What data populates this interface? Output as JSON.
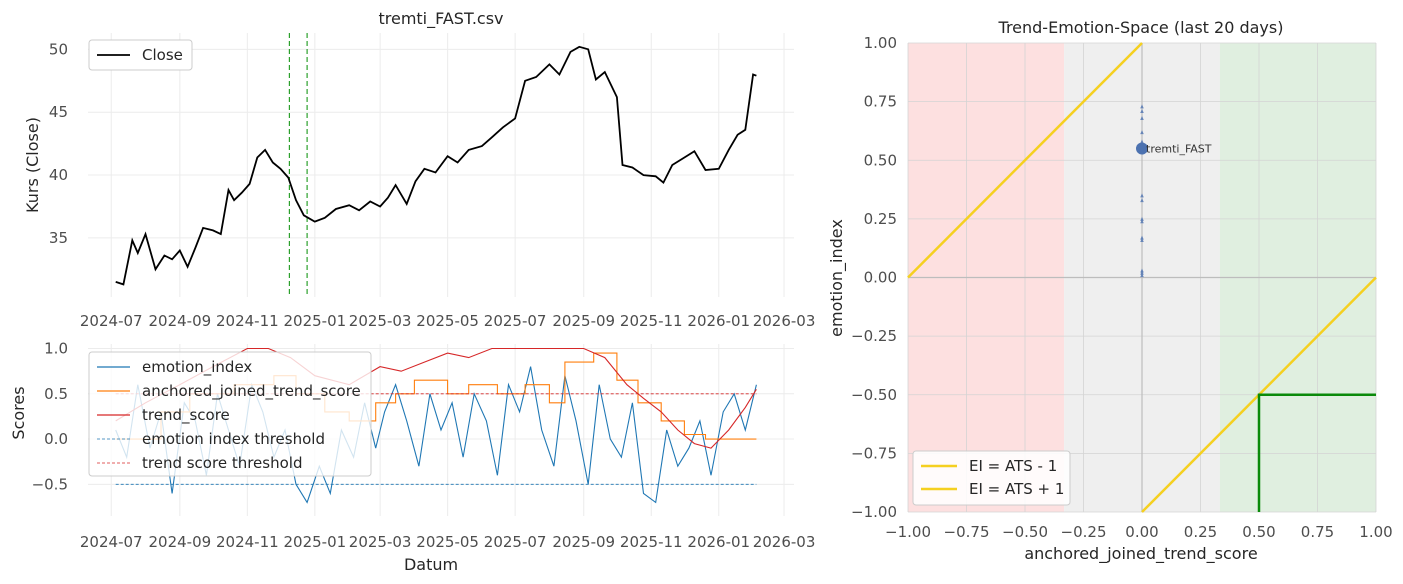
{
  "chart_data": [
    {
      "type": "line",
      "title": "tremti_FAST.csv",
      "xlabel": "",
      "ylabel": "Kurs (Close)",
      "xlim": [
        "2024-06-10",
        "2026-03-10"
      ],
      "ylim": [
        30.3,
        51.3
      ],
      "yticks": [
        35,
        40,
        45,
        50
      ],
      "xticks": [
        "2024-07",
        "2024-09",
        "2024-11",
        "2025-01",
        "2025-03",
        "2025-05",
        "2025-07",
        "2025-09",
        "2025-11",
        "2026-01",
        "2026-03"
      ],
      "grid": true,
      "legend": "top-left",
      "vlines": [
        "2024-12-09",
        "2024-12-25"
      ],
      "series": [
        {
          "name": "Close",
          "color": "#000000",
          "x": [
            "2024-07-05",
            "2024-07-12",
            "2024-07-20",
            "2024-07-25",
            "2024-08-01",
            "2024-08-10",
            "2024-08-18",
            "2024-08-25",
            "2024-09-01",
            "2024-09-08",
            "2024-09-15",
            "2024-09-22",
            "2024-10-01",
            "2024-10-08",
            "2024-10-15",
            "2024-10-20",
            "2024-10-27",
            "2024-11-03",
            "2024-11-10",
            "2024-11-17",
            "2024-11-24",
            "2024-12-01",
            "2024-12-08",
            "2024-12-15",
            "2024-12-22",
            "2025-01-01",
            "2025-01-10",
            "2025-01-20",
            "2025-02-01",
            "2025-02-10",
            "2025-02-20",
            "2025-03-01",
            "2025-03-08",
            "2025-03-15",
            "2025-03-25",
            "2025-04-02",
            "2025-04-10",
            "2025-04-20",
            "2025-05-01",
            "2025-05-10",
            "2025-05-20",
            "2025-06-01",
            "2025-06-10",
            "2025-06-20",
            "2025-07-01",
            "2025-07-10",
            "2025-07-20",
            "2025-08-01",
            "2025-08-10",
            "2025-08-20",
            "2025-08-28",
            "2025-09-05",
            "2025-09-12",
            "2025-09-20",
            "2025-10-01",
            "2025-10-06",
            "2025-10-15",
            "2025-10-25",
            "2025-11-05",
            "2025-11-12",
            "2025-11-20",
            "2025-12-01",
            "2025-12-10",
            "2025-12-20",
            "2026-01-01",
            "2026-01-10",
            "2026-01-18",
            "2026-01-25",
            "2026-02-01",
            "2026-02-04"
          ],
          "y": [
            31.5,
            31.3,
            34.8,
            33.8,
            35.3,
            32.5,
            33.6,
            33.3,
            34.0,
            32.7,
            34.2,
            35.8,
            35.6,
            35.3,
            38.8,
            38.0,
            38.6,
            39.3,
            41.4,
            42.0,
            41.0,
            40.5,
            39.8,
            38.0,
            36.8,
            36.3,
            36.6,
            37.3,
            37.6,
            37.2,
            37.9,
            37.5,
            38.2,
            39.2,
            37.7,
            39.5,
            40.5,
            40.2,
            41.5,
            41.0,
            42.0,
            42.3,
            43.0,
            43.8,
            44.5,
            47.5,
            47.8,
            48.8,
            48.0,
            49.8,
            50.2,
            50.0,
            47.6,
            48.2,
            46.2,
            40.8,
            40.6,
            40.0,
            39.9,
            39.4,
            40.8,
            41.4,
            41.9,
            40.4,
            40.5,
            42.0,
            43.2,
            43.6,
            48.0,
            47.9
          ]
        }
      ]
    },
    {
      "type": "line",
      "title": "",
      "xlabel": "Datum",
      "ylabel": "Scores",
      "xlim": [
        "2024-06-10",
        "2026-03-10"
      ],
      "ylim": [
        -0.85,
        1.05
      ],
      "yticks": [
        -0.5,
        0.0,
        0.5,
        1.0
      ],
      "xticks": [
        "2024-07",
        "2024-09",
        "2024-11",
        "2025-01",
        "2025-03",
        "2025-05",
        "2025-07",
        "2025-09",
        "2025-11",
        "2026-01",
        "2026-03"
      ],
      "grid": true,
      "legend": "top-left",
      "series": [
        {
          "name": "emotion_index",
          "color": "#1f77b4",
          "x": [
            "2024-07-05",
            "2024-07-15",
            "2024-07-25",
            "2024-08-05",
            "2024-08-15",
            "2024-08-25",
            "2024-09-05",
            "2024-09-15",
            "2024-09-25",
            "2024-10-05",
            "2024-10-15",
            "2024-10-25",
            "2024-11-05",
            "2024-11-15",
            "2024-11-25",
            "2024-12-05",
            "2024-12-15",
            "2024-12-25",
            "2025-01-05",
            "2025-01-15",
            "2025-01-25",
            "2025-02-05",
            "2025-02-15",
            "2025-02-25",
            "2025-03-05",
            "2025-03-15",
            "2025-03-25",
            "2025-04-05",
            "2025-04-15",
            "2025-04-25",
            "2025-05-05",
            "2025-05-15",
            "2025-05-25",
            "2025-06-05",
            "2025-06-15",
            "2025-06-25",
            "2025-07-05",
            "2025-07-15",
            "2025-07-25",
            "2025-08-05",
            "2025-08-15",
            "2025-08-25",
            "2025-09-05",
            "2025-09-15",
            "2025-09-25",
            "2025-10-05",
            "2025-10-15",
            "2025-10-25",
            "2025-11-05",
            "2025-11-15",
            "2025-11-25",
            "2025-12-05",
            "2025-12-15",
            "2025-12-25",
            "2026-01-05",
            "2026-01-15",
            "2026-01-25",
            "2026-02-04"
          ],
          "y": [
            0.1,
            -0.2,
            0.6,
            -0.1,
            0.3,
            -0.6,
            0.4,
            0.2,
            -0.4,
            0.5,
            0.1,
            -0.3,
            0.6,
            0.3,
            -0.2,
            0.1,
            -0.5,
            -0.7,
            -0.3,
            -0.6,
            0.1,
            -0.2,
            0.4,
            -0.1,
            0.3,
            0.6,
            0.2,
            -0.3,
            0.5,
            0.1,
            0.4,
            -0.2,
            0.5,
            0.2,
            -0.4,
            0.6,
            0.3,
            0.8,
            0.1,
            -0.3,
            0.7,
            0.2,
            -0.5,
            0.6,
            0.0,
            -0.2,
            0.4,
            -0.6,
            -0.7,
            0.1,
            -0.3,
            -0.1,
            0.2,
            -0.4,
            0.3,
            0.5,
            0.1,
            0.6
          ]
        },
        {
          "name": "anchored_joined_trend_score",
          "color": "#ff7f0e",
          "x": [
            "2024-07-05",
            "2024-08-15",
            "2024-09-10",
            "2024-10-20",
            "2024-11-25",
            "2024-12-15",
            "2025-01-10",
            "2025-02-01",
            "2025-02-25",
            "2025-03-15",
            "2025-04-01",
            "2025-05-01",
            "2025-05-20",
            "2025-06-15",
            "2025-07-10",
            "2025-08-01",
            "2025-08-15",
            "2025-09-10",
            "2025-10-01",
            "2025-10-20",
            "2025-11-10",
            "2025-12-01",
            "2025-12-20",
            "2026-01-10",
            "2026-02-04"
          ],
          "y": [
            0.0,
            0.3,
            0.5,
            0.6,
            0.7,
            0.5,
            0.3,
            0.2,
            0.4,
            0.5,
            0.65,
            0.5,
            0.6,
            0.5,
            0.6,
            0.4,
            0.85,
            0.95,
            0.65,
            0.4,
            0.2,
            0.05,
            0.0,
            0.0,
            0.0
          ]
        },
        {
          "name": "trend_score",
          "color": "#d62728",
          "x": [
            "2024-07-05",
            "2024-08-01",
            "2024-09-01",
            "2024-10-01",
            "2024-11-01",
            "2024-11-20",
            "2024-12-10",
            "2025-01-01",
            "2025-02-01",
            "2025-03-01",
            "2025-03-20",
            "2025-04-10",
            "2025-05-01",
            "2025-05-20",
            "2025-06-10",
            "2025-07-01",
            "2025-07-20",
            "2025-08-10",
            "2025-09-01",
            "2025-09-20",
            "2025-10-10",
            "2025-10-25",
            "2025-11-10",
            "2025-11-25",
            "2025-12-10",
            "2025-12-25",
            "2026-01-10",
            "2026-01-25",
            "2026-02-04"
          ],
          "y": [
            0.2,
            0.4,
            0.6,
            0.8,
            1.0,
            1.0,
            0.9,
            0.7,
            0.6,
            0.8,
            0.75,
            0.85,
            0.95,
            0.9,
            1.0,
            1.0,
            1.0,
            1.0,
            1.0,
            0.9,
            0.6,
            0.45,
            0.3,
            0.1,
            -0.05,
            -0.1,
            0.1,
            0.35,
            0.55
          ]
        },
        {
          "name": "emotion index threshold",
          "color": "#1f77b4",
          "x": [
            "2024-07-05",
            "2026-02-04"
          ],
          "y": [
            -0.5,
            -0.5
          ]
        },
        {
          "name": "trend score threshold",
          "color": "#d62728",
          "x": [
            "2024-07-05",
            "2026-02-04"
          ],
          "y": [
            0.5,
            0.5
          ]
        }
      ]
    },
    {
      "type": "scatter",
      "title": "Trend-Emotion-Space (last 20 days)",
      "xlabel": "anchored_joined_trend_score",
      "ylabel": "emotion_index",
      "xlim": [
        -1.0,
        1.0
      ],
      "ylim": [
        -1.0,
        1.0
      ],
      "xticks": [
        -1.0,
        -0.75,
        -0.5,
        -0.25,
        0.0,
        0.25,
        0.5,
        0.75,
        1.0
      ],
      "yticks": [
        -1.0,
        -0.75,
        -0.5,
        -0.25,
        0.0,
        0.25,
        0.5,
        0.75,
        1.0
      ],
      "tick_labels": [
        "−1.00",
        "−0.75",
        "−0.50",
        "−0.25",
        "0.00",
        "0.25",
        "0.50",
        "0.75",
        "1.00"
      ],
      "grid": true,
      "legend": "bottom-left",
      "regions": [
        {
          "x0": -1.0,
          "x1": -0.333,
          "color": "#fde0e0"
        },
        {
          "x0": -0.333,
          "x1": 0.333,
          "color": "#efefef"
        },
        {
          "x0": 0.333,
          "x1": 1.0,
          "color": "#e0efe0"
        }
      ],
      "series": [
        {
          "name": "EI = ATS - 1",
          "color": "#f5d020",
          "x": [
            0.0,
            1.0
          ],
          "y": [
            -1.0,
            0.0
          ]
        },
        {
          "name": "EI = ATS + 1",
          "color": "#f5d020",
          "x": [
            -1.0,
            0.0
          ],
          "y": [
            0.0,
            1.0
          ]
        }
      ],
      "box": {
        "color": "#0a8a0a",
        "x": [
          0.5,
          0.5,
          1.0
        ],
        "y": [
          -1.0,
          -0.5,
          -0.5
        ]
      },
      "point": {
        "label": "tremti_FAST",
        "x": 0.0,
        "y": 0.55,
        "color": "#4c72b0"
      },
      "trail_y": [
        0.73,
        0.71,
        0.68,
        0.62,
        0.58,
        0.56,
        0.54,
        0.35,
        0.33,
        0.25,
        0.24,
        0.17,
        0.16,
        0.03,
        0.02,
        0.01
      ]
    }
  ]
}
